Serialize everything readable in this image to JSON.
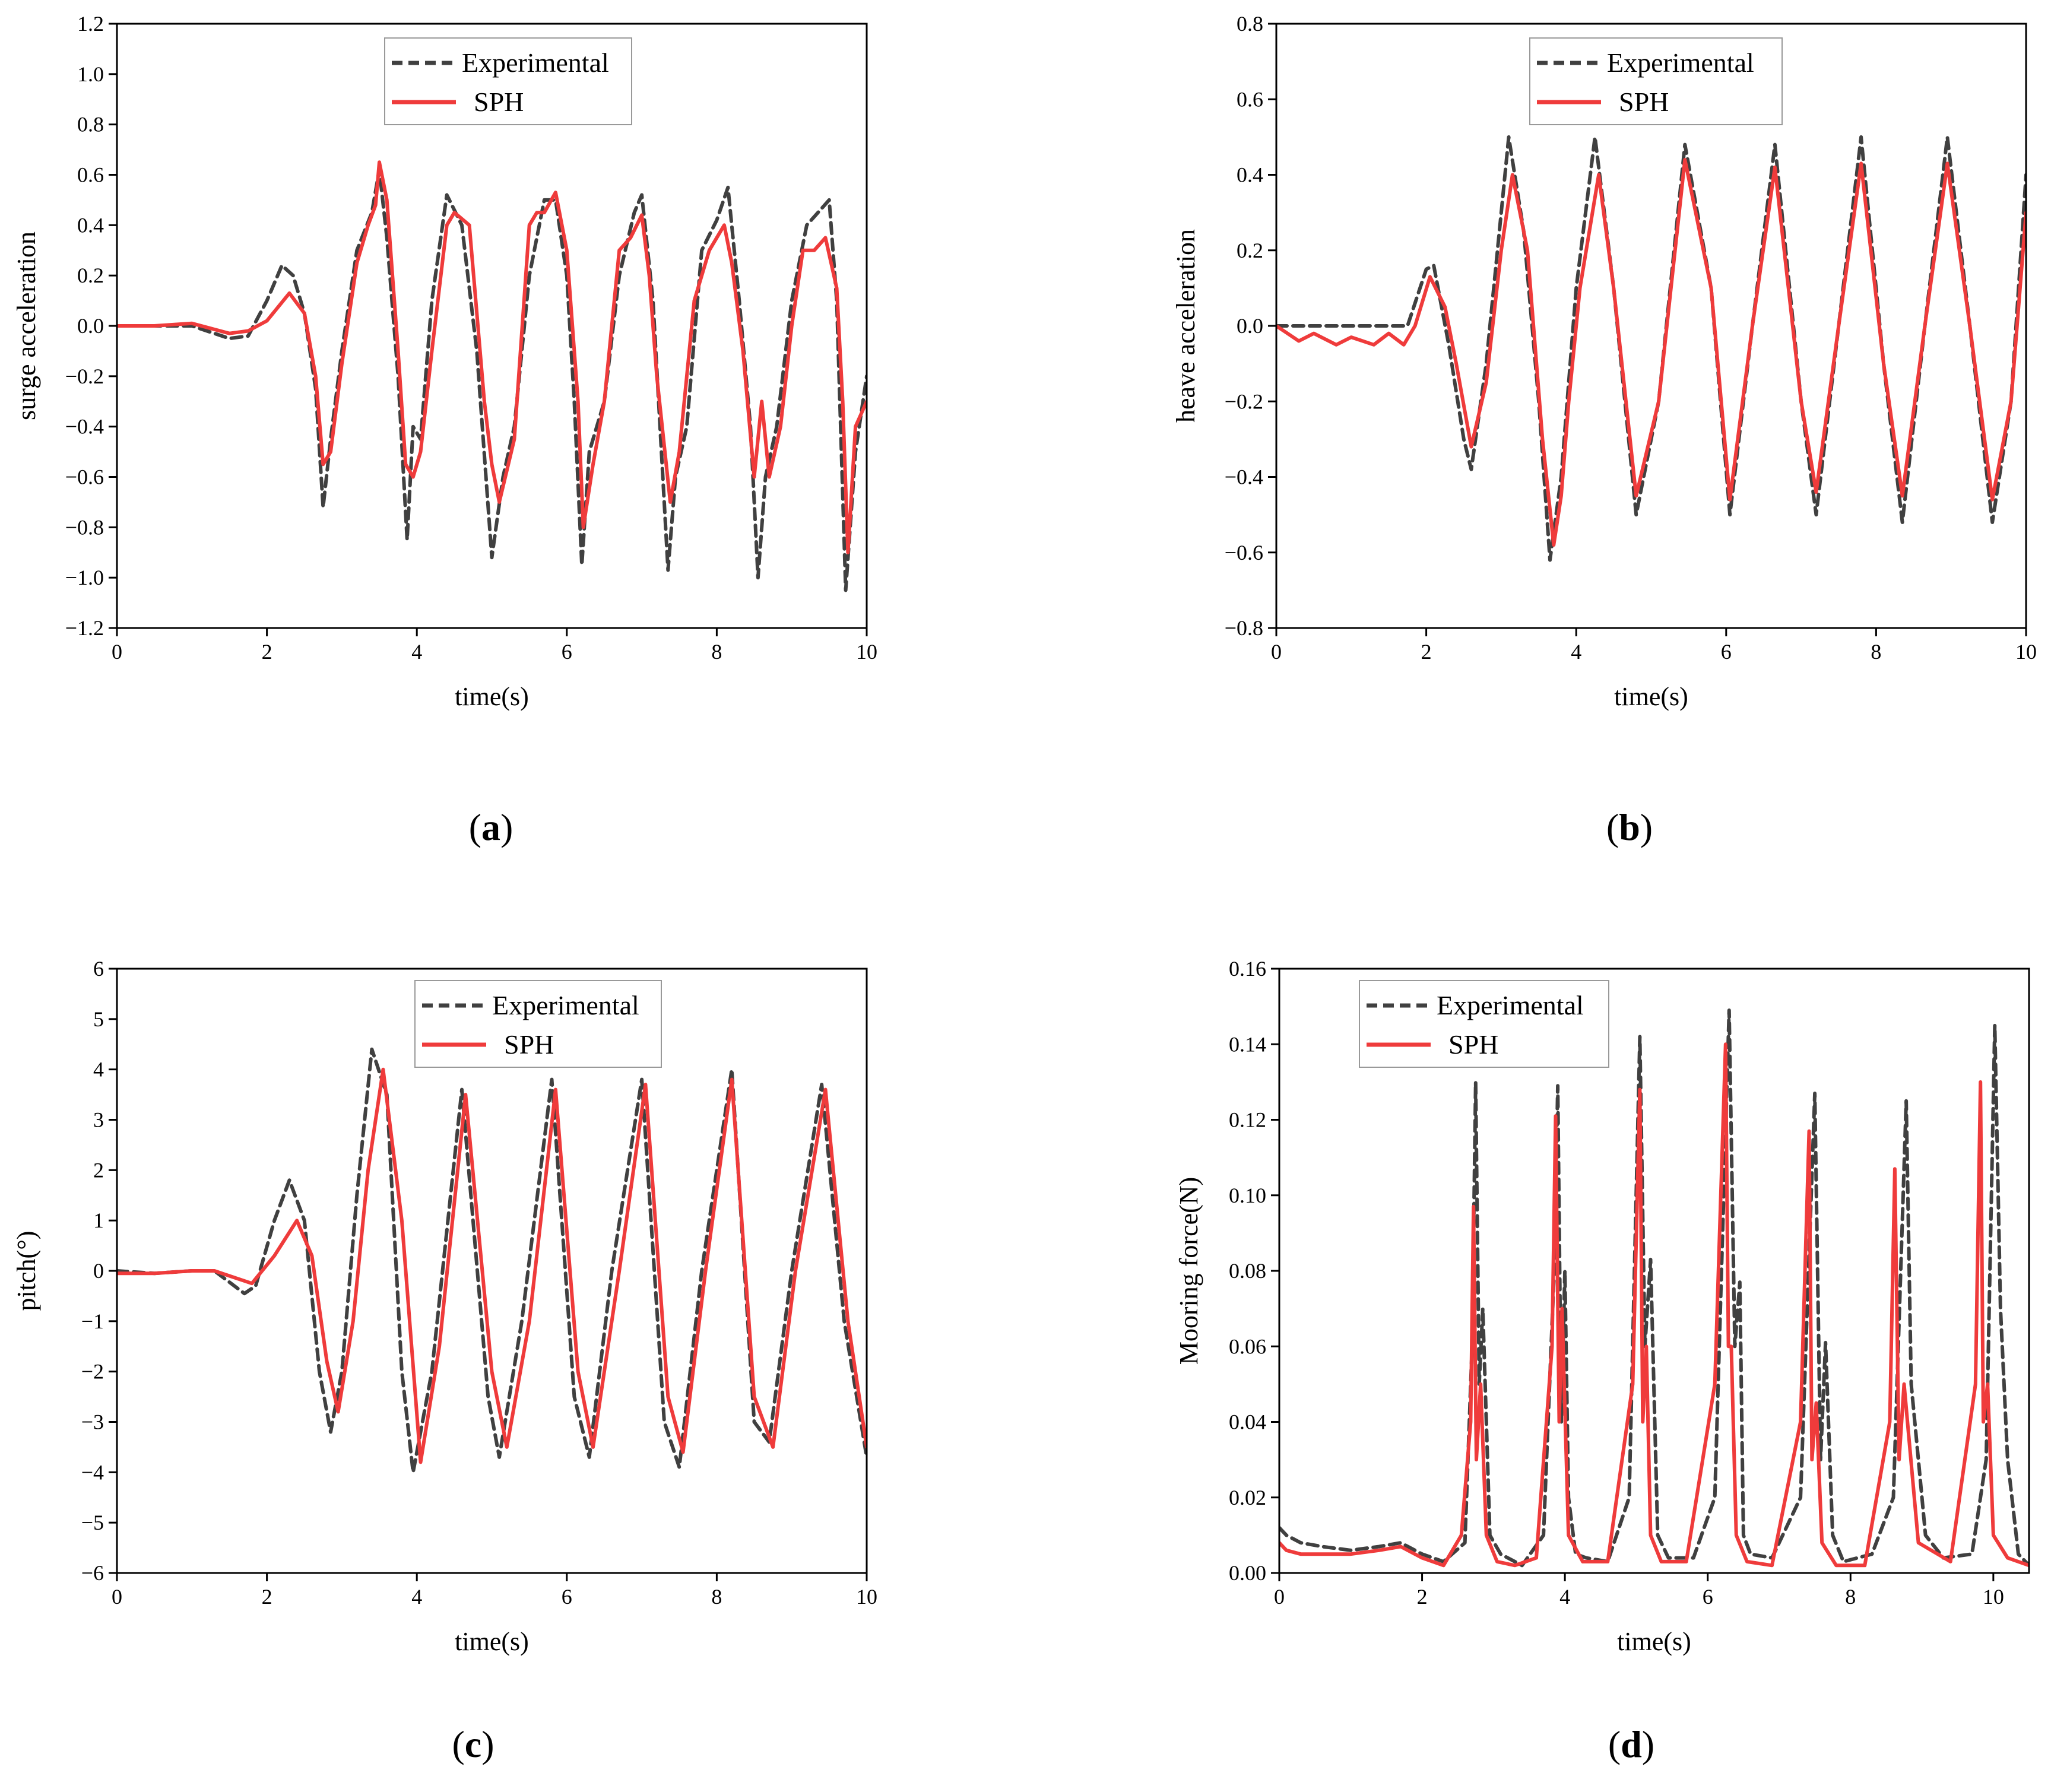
{
  "colors": {
    "experimental": "#404040",
    "sph": "#ef3b3b",
    "axis": "#000000",
    "background": "#ffffff"
  },
  "chart_data": [
    {
      "type": "line",
      "caption": "(a)",
      "caption_letter": "a",
      "xlabel": "time(s)",
      "ylabel": "surge acceleration",
      "xlim": [
        0,
        10
      ],
      "ylim": [
        -1.2,
        1.2
      ],
      "xticks": [
        0,
        2,
        4,
        6,
        8,
        10
      ],
      "xtick_labels": [
        "0",
        "2",
        "4",
        "6",
        "8",
        "10"
      ],
      "yticks": [
        -1.2,
        -1.0,
        -0.8,
        -0.6,
        -0.4,
        -0.2,
        0.0,
        0.2,
        0.4,
        0.6,
        0.8,
        1.0,
        1.2
      ],
      "ytick_labels": [
        "−1.2",
        "−1.0",
        "−0.8",
        "−0.6",
        "−0.4",
        "−0.2",
        "0.0",
        "0.2",
        "0.4",
        "0.6",
        "0.8",
        "1.0",
        "1.2"
      ],
      "grid": false,
      "legend_position": "top-center",
      "series": [
        {
          "name": "Experimental",
          "style": "dashed",
          "x": [
            0,
            0.5,
            1.0,
            1.5,
            1.75,
            2.0,
            2.2,
            2.35,
            2.5,
            2.65,
            2.75,
            2.85,
            3.0,
            3.2,
            3.4,
            3.5,
            3.6,
            3.75,
            3.87,
            3.95,
            4.05,
            4.2,
            4.4,
            4.6,
            4.8,
            5.0,
            5.15,
            5.3,
            5.5,
            5.7,
            5.85,
            6.0,
            6.1,
            6.2,
            6.3,
            6.5,
            6.7,
            6.9,
            7.0,
            7.15,
            7.35,
            7.45,
            7.6,
            7.8,
            8.0,
            8.15,
            8.3,
            8.45,
            8.55,
            8.65,
            8.8,
            9.0,
            9.2,
            9.35,
            9.5,
            9.6,
            9.72,
            9.85,
            10.0
          ],
          "y": [
            0.0,
            0.0,
            0.0,
            -0.05,
            -0.04,
            0.1,
            0.24,
            0.2,
            0.05,
            -0.25,
            -0.72,
            -0.45,
            -0.1,
            0.3,
            0.45,
            0.62,
            0.35,
            -0.2,
            -0.85,
            -0.4,
            -0.45,
            0.1,
            0.52,
            0.4,
            -0.1,
            -0.92,
            -0.6,
            -0.4,
            0.2,
            0.5,
            0.5,
            0.2,
            -0.3,
            -0.95,
            -0.5,
            -0.3,
            0.2,
            0.45,
            0.52,
            0.1,
            -0.97,
            -0.6,
            -0.4,
            0.3,
            0.42,
            0.55,
            0.1,
            -0.4,
            -1.0,
            -0.6,
            -0.4,
            0.1,
            0.4,
            0.45,
            0.5,
            0.1,
            -1.05,
            -0.5,
            -0.2
          ]
        },
        {
          "name": "SPH",
          "style": "solid",
          "x": [
            0,
            0.5,
            1.0,
            1.5,
            1.75,
            2.0,
            2.3,
            2.5,
            2.65,
            2.75,
            2.85,
            3.0,
            3.2,
            3.35,
            3.45,
            3.5,
            3.6,
            3.75,
            3.85,
            3.95,
            4.05,
            4.2,
            4.4,
            4.5,
            4.7,
            4.9,
            5.0,
            5.1,
            5.3,
            5.5,
            5.6,
            5.7,
            5.85,
            6.0,
            6.15,
            6.22,
            6.35,
            6.5,
            6.7,
            6.85,
            7.0,
            7.1,
            7.2,
            7.38,
            7.5,
            7.7,
            7.9,
            8.1,
            8.2,
            8.35,
            8.5,
            8.6,
            8.7,
            8.85,
            9.0,
            9.15,
            9.3,
            9.45,
            9.6,
            9.68,
            9.75,
            9.85,
            10.0
          ],
          "y": [
            0.0,
            0.0,
            0.01,
            -0.03,
            -0.02,
            0.02,
            0.13,
            0.05,
            -0.2,
            -0.55,
            -0.5,
            -0.15,
            0.25,
            0.4,
            0.48,
            0.65,
            0.5,
            -0.1,
            -0.55,
            -0.6,
            -0.5,
            -0.1,
            0.4,
            0.45,
            0.4,
            -0.3,
            -0.55,
            -0.7,
            -0.45,
            0.4,
            0.45,
            0.45,
            0.53,
            0.3,
            -0.3,
            -0.8,
            -0.55,
            -0.3,
            0.3,
            0.35,
            0.44,
            0.2,
            -0.2,
            -0.7,
            -0.5,
            0.1,
            0.3,
            0.4,
            0.25,
            -0.1,
            -0.6,
            -0.3,
            -0.6,
            -0.4,
            0.0,
            0.3,
            0.3,
            0.35,
            0.15,
            -0.3,
            -0.9,
            -0.4,
            -0.3
          ]
        }
      ]
    },
    {
      "type": "line",
      "caption": "(b)",
      "caption_letter": "b",
      "xlabel": "time(s)",
      "ylabel": "heave acceleration",
      "xlim": [
        0,
        10
      ],
      "ylim": [
        -0.8,
        0.8
      ],
      "xticks": [
        0,
        2,
        4,
        6,
        8,
        10
      ],
      "xtick_labels": [
        "0",
        "2",
        "4",
        "6",
        "8",
        "10"
      ],
      "yticks": [
        -0.8,
        -0.6,
        -0.4,
        -0.2,
        0.0,
        0.2,
        0.4,
        0.6,
        0.8
      ],
      "ytick_labels": [
        "−0.8",
        "−0.6",
        "−0.4",
        "−0.2",
        "0.0",
        "0.2",
        "0.4",
        "0.6",
        "0.8"
      ],
      "grid": false,
      "legend_position": "top-center",
      "series": [
        {
          "name": "Experimental",
          "style": "dashed",
          "x": [
            0,
            0.5,
            1.0,
            1.5,
            1.75,
            2.0,
            2.1,
            2.3,
            2.5,
            2.6,
            2.8,
            3.0,
            3.1,
            3.3,
            3.5,
            3.65,
            3.8,
            4.0,
            4.25,
            4.5,
            4.8,
            5.1,
            5.45,
            5.8,
            6.05,
            6.35,
            6.65,
            7.0,
            7.2,
            7.5,
            7.8,
            8.1,
            8.35,
            8.65,
            8.95,
            9.25,
            9.55,
            9.8,
            10.0
          ],
          "y": [
            0.0,
            0.0,
            0.0,
            0.0,
            0.0,
            0.15,
            0.16,
            -0.05,
            -0.3,
            -0.38,
            -0.1,
            0.3,
            0.5,
            0.25,
            -0.2,
            -0.62,
            -0.4,
            0.1,
            0.5,
            0.1,
            -0.5,
            -0.2,
            0.48,
            0.1,
            -0.5,
            0.0,
            0.48,
            -0.2,
            -0.5,
            0.0,
            0.5,
            -0.1,
            -0.52,
            0.0,
            0.5,
            0.0,
            -0.52,
            -0.2,
            0.4
          ]
        },
        {
          "name": "SPH",
          "style": "solid",
          "x": [
            0,
            0.3,
            0.5,
            0.8,
            1.0,
            1.3,
            1.5,
            1.7,
            1.85,
            2.05,
            2.25,
            2.4,
            2.6,
            2.8,
            3.0,
            3.15,
            3.35,
            3.55,
            3.7,
            3.8,
            3.9,
            4.05,
            4.3,
            4.5,
            4.8,
            5.1,
            5.45,
            5.8,
            6.05,
            6.35,
            6.65,
            7.0,
            7.2,
            7.5,
            7.8,
            8.1,
            8.35,
            8.65,
            8.95,
            9.25,
            9.55,
            9.8,
            10.0
          ],
          "y": [
            0.0,
            -0.04,
            -0.02,
            -0.05,
            -0.03,
            -0.05,
            -0.02,
            -0.05,
            0.0,
            0.13,
            0.05,
            -0.1,
            -0.32,
            -0.15,
            0.2,
            0.4,
            0.2,
            -0.3,
            -0.58,
            -0.45,
            -0.2,
            0.1,
            0.4,
            0.1,
            -0.45,
            -0.2,
            0.44,
            0.1,
            -0.46,
            0.0,
            0.42,
            -0.2,
            -0.44,
            0.0,
            0.43,
            -0.1,
            -0.45,
            0.0,
            0.43,
            0.0,
            -0.46,
            -0.2,
            0.3
          ]
        }
      ]
    },
    {
      "type": "line",
      "caption": "(c)",
      "caption_letter": "c",
      "xlabel": "time(s)",
      "ylabel": "pitch(°)",
      "xlim": [
        0,
        10
      ],
      "ylim": [
        -6,
        6
      ],
      "xticks": [
        0,
        2,
        4,
        6,
        8,
        10
      ],
      "xtick_labels": [
        "0",
        "2",
        "4",
        "6",
        "8",
        "10"
      ],
      "yticks": [
        -6,
        -5,
        -4,
        -3,
        -2,
        -1,
        0,
        1,
        2,
        3,
        4,
        5,
        6
      ],
      "ytick_labels": [
        "−6",
        "−5",
        "−4",
        "−3",
        "−2",
        "−1",
        "0",
        "1",
        "2",
        "3",
        "4",
        "5",
        "6"
      ],
      "grid": false,
      "legend_position": "top-center",
      "series": [
        {
          "name": "Experimental",
          "style": "dashed",
          "x": [
            0,
            0.5,
            1.0,
            1.3,
            1.7,
            1.85,
            2.1,
            2.3,
            2.5,
            2.7,
            2.85,
            3.0,
            3.2,
            3.4,
            3.6,
            3.8,
            3.95,
            4.2,
            4.6,
            4.95,
            5.1,
            5.4,
            5.8,
            6.1,
            6.3,
            6.6,
            7.0,
            7.3,
            7.5,
            7.8,
            8.2,
            8.5,
            8.7,
            9.0,
            9.4,
            9.7,
            10.0
          ],
          "y": [
            0.0,
            -0.05,
            0.0,
            0.0,
            -0.45,
            -0.3,
            1.0,
            1.8,
            1.0,
            -2.0,
            -3.2,
            -2.0,
            1.5,
            4.4,
            3.5,
            -2.0,
            -4.0,
            -2.0,
            3.6,
            -2.5,
            -3.7,
            -1.0,
            3.8,
            -2.5,
            -3.7,
            0.0,
            3.8,
            -3.0,
            -3.9,
            0.0,
            4.0,
            -3.0,
            -3.4,
            0.0,
            3.7,
            -1.0,
            -3.7
          ]
        },
        {
          "name": "SPH",
          "style": "solid",
          "x": [
            0,
            0.5,
            1.0,
            1.3,
            1.8,
            2.1,
            2.4,
            2.6,
            2.8,
            2.95,
            3.15,
            3.35,
            3.55,
            3.8,
            4.05,
            4.3,
            4.65,
            5.0,
            5.2,
            5.5,
            5.85,
            6.15,
            6.35,
            6.7,
            7.05,
            7.35,
            7.55,
            7.85,
            8.2,
            8.5,
            8.75,
            9.05,
            9.45,
            9.75,
            10.0
          ],
          "y": [
            -0.05,
            -0.05,
            0.0,
            0.0,
            -0.25,
            0.3,
            1.0,
            0.3,
            -1.8,
            -2.8,
            -1.0,
            2.0,
            4.0,
            1.0,
            -3.8,
            -1.5,
            3.5,
            -2.0,
            -3.5,
            -1.0,
            3.6,
            -2.0,
            -3.5,
            0.0,
            3.7,
            -2.5,
            -3.6,
            0.0,
            3.8,
            -2.5,
            -3.5,
            0.0,
            3.6,
            -1.0,
            -3.5
          ]
        }
      ]
    },
    {
      "type": "line",
      "caption": "(d)",
      "caption_letter": "d",
      "xlabel": "time(s)",
      "ylabel": "Mooring force(N)",
      "xlim": [
        0,
        10.5
      ],
      "ylim": [
        0,
        0.16
      ],
      "xticks": [
        0,
        2,
        4,
        6,
        8,
        10
      ],
      "xtick_labels": [
        "0",
        "2",
        "4",
        "6",
        "8",
        "10"
      ],
      "yticks": [
        0,
        0.02,
        0.04,
        0.06,
        0.08,
        0.1,
        0.12,
        0.14,
        0.16
      ],
      "ytick_labels": [
        "0.00",
        "0.02",
        "0.04",
        "0.06",
        "0.08",
        "0.10",
        "0.12",
        "0.14",
        "0.16"
      ],
      "grid": false,
      "legend_position": "top-left",
      "series": [
        {
          "name": "Experimental",
          "style": "dashed",
          "x": [
            0,
            0.1,
            0.3,
            0.6,
            1.0,
            1.4,
            1.7,
            2.0,
            2.3,
            2.6,
            2.7,
            2.75,
            2.8,
            2.85,
            2.95,
            3.1,
            3.4,
            3.7,
            3.85,
            3.9,
            3.95,
            4.0,
            4.05,
            4.15,
            4.3,
            4.6,
            4.9,
            5.05,
            5.12,
            5.2,
            5.3,
            5.45,
            5.8,
            6.1,
            6.3,
            6.38,
            6.45,
            6.5,
            6.6,
            6.9,
            7.3,
            7.5,
            7.58,
            7.65,
            7.75,
            7.9,
            8.3,
            8.6,
            8.78,
            8.85,
            8.95,
            9.05,
            9.3,
            9.7,
            9.9,
            10.02,
            10.1,
            10.2,
            10.35,
            10.5
          ],
          "y": [
            0.012,
            0.01,
            0.008,
            0.007,
            0.006,
            0.007,
            0.008,
            0.005,
            0.003,
            0.008,
            0.06,
            0.13,
            0.05,
            0.07,
            0.01,
            0.005,
            0.002,
            0.01,
            0.08,
            0.129,
            0.04,
            0.08,
            0.02,
            0.005,
            0.004,
            0.003,
            0.02,
            0.142,
            0.06,
            0.083,
            0.01,
            0.004,
            0.004,
            0.02,
            0.149,
            0.06,
            0.077,
            0.01,
            0.005,
            0.004,
            0.02,
            0.127,
            0.03,
            0.061,
            0.01,
            0.003,
            0.005,
            0.02,
            0.125,
            0.05,
            0.03,
            0.01,
            0.004,
            0.005,
            0.03,
            0.145,
            0.07,
            0.03,
            0.005,
            0.002
          ]
        },
        {
          "name": "SPH",
          "style": "solid",
          "x": [
            0,
            0.1,
            0.3,
            0.6,
            1.0,
            1.4,
            1.7,
            2.0,
            2.3,
            2.55,
            2.68,
            2.72,
            2.76,
            2.82,
            2.9,
            3.05,
            3.3,
            3.6,
            3.82,
            3.87,
            3.92,
            3.96,
            4.05,
            4.25,
            4.6,
            4.95,
            5.05,
            5.09,
            5.14,
            5.2,
            5.35,
            5.7,
            6.1,
            6.25,
            6.29,
            6.33,
            6.4,
            6.55,
            6.9,
            7.3,
            7.42,
            7.46,
            7.52,
            7.6,
            7.8,
            8.2,
            8.55,
            8.62,
            8.68,
            8.75,
            8.95,
            9.4,
            9.75,
            9.82,
            9.86,
            9.92,
            10.0,
            10.2,
            10.5
          ],
          "y": [
            0.008,
            0.006,
            0.005,
            0.005,
            0.005,
            0.006,
            0.007,
            0.004,
            0.002,
            0.01,
            0.04,
            0.097,
            0.03,
            0.05,
            0.01,
            0.003,
            0.002,
            0.004,
            0.06,
            0.121,
            0.04,
            0.07,
            0.01,
            0.003,
            0.003,
            0.05,
            0.128,
            0.04,
            0.06,
            0.01,
            0.003,
            0.003,
            0.05,
            0.14,
            0.06,
            0.06,
            0.01,
            0.003,
            0.002,
            0.04,
            0.117,
            0.03,
            0.045,
            0.008,
            0.002,
            0.002,
            0.04,
            0.107,
            0.03,
            0.05,
            0.008,
            0.003,
            0.05,
            0.13,
            0.04,
            0.05,
            0.01,
            0.004,
            0.002
          ]
        }
      ]
    }
  ]
}
